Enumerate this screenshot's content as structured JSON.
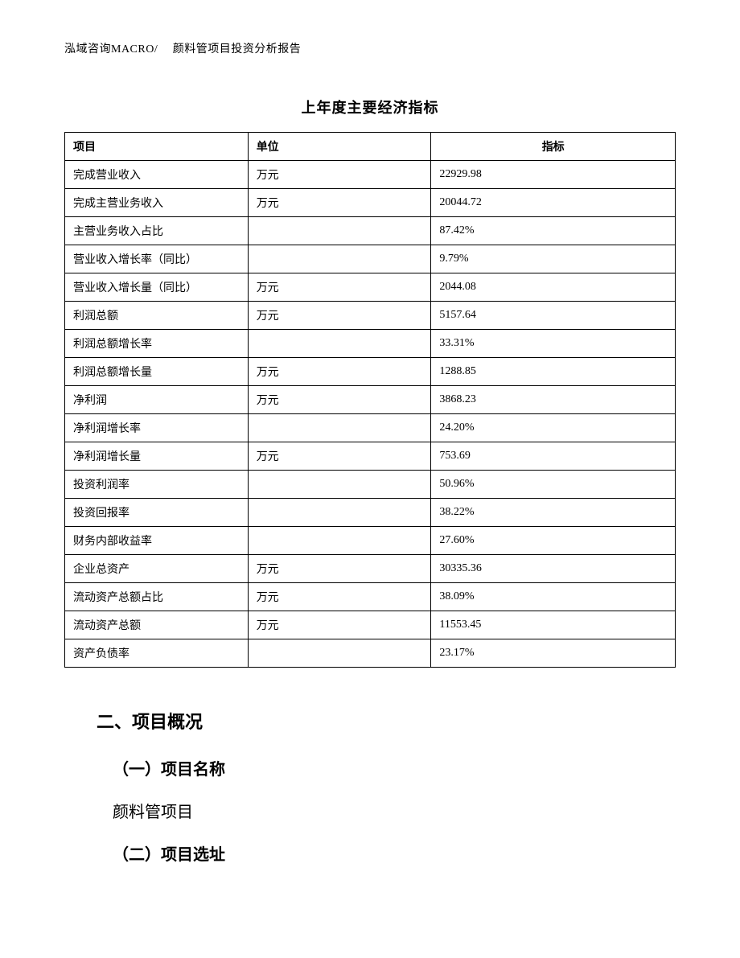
{
  "header": "泓域咨询MACRO/　 颜料管项目投资分析报告",
  "table": {
    "title": "上年度主要经济指标",
    "columns": [
      "项目",
      "单位",
      "指标"
    ],
    "rows": [
      [
        "完成营业收入",
        "万元",
        "22929.98"
      ],
      [
        "完成主营业务收入",
        "万元",
        "20044.72"
      ],
      [
        "主营业务收入占比",
        "",
        "87.42%"
      ],
      [
        "营业收入增长率（同比）",
        "",
        "9.79%"
      ],
      [
        "营业收入增长量（同比）",
        "万元",
        "2044.08"
      ],
      [
        "利润总额",
        "万元",
        "5157.64"
      ],
      [
        "利润总额增长率",
        "",
        "33.31%"
      ],
      [
        "利润总额增长量",
        "万元",
        "1288.85"
      ],
      [
        "净利润",
        "万元",
        "3868.23"
      ],
      [
        "净利润增长率",
        "",
        "24.20%"
      ],
      [
        "净利润增长量",
        "万元",
        "753.69"
      ],
      [
        "投资利润率",
        "",
        "50.96%"
      ],
      [
        "投资回报率",
        "",
        "38.22%"
      ],
      [
        "财务内部收益率",
        "",
        "27.60%"
      ],
      [
        "企业总资产",
        "万元",
        "30335.36"
      ],
      [
        "流动资产总额占比",
        "万元",
        "38.09%"
      ],
      [
        "流动资产总额",
        "万元",
        "11553.45"
      ],
      [
        "资产负债率",
        "",
        "23.17%"
      ]
    ]
  },
  "sections": {
    "main_heading": "二、项目概况",
    "sub1": "（一）项目名称",
    "body1": "颜料管项目",
    "sub2": "（二）项目选址"
  },
  "style": {
    "page_bg": "#ffffff",
    "text_color": "#000000",
    "border_color": "#000000",
    "header_fontsize": 14,
    "title_fontsize": 18,
    "cell_fontsize": 14,
    "section_fontsize": 22,
    "subheading_fontsize": 20,
    "body_fontsize": 20
  }
}
